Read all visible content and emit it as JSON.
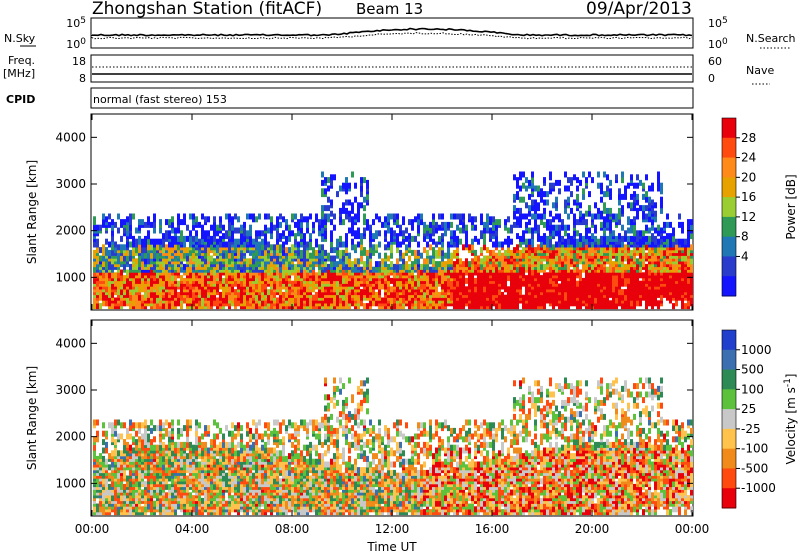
{
  "header": {
    "title": "Zhongshan Station (fitACF)",
    "beam": "Beam 13",
    "date": "09/Apr/2013"
  },
  "strip_labels": {
    "nsky": "N.Sky",
    "nsearch": "N.Search",
    "freq": "Freq.",
    "mhz": "[MHz]",
    "nave": "Nave",
    "cpid": "CPID",
    "cpid_text": "normal (fast stereo) 153",
    "nsky_ticks": [
      "10^5",
      "10^0"
    ],
    "nsearch_ticks": [
      "10^5",
      "10^0"
    ],
    "freq_ticks": [
      "18",
      "8"
    ],
    "nave_ticks": [
      "60",
      "0"
    ]
  },
  "chart_data": [
    {
      "type": "heatmap",
      "name": "power",
      "ylabel": "Slant Range [km]",
      "ylim": [
        300,
        4500
      ],
      "y_ticks": [
        1000,
        2000,
        3000,
        4000
      ],
      "xlim": [
        0,
        24
      ],
      "colorbar": {
        "label": "Power [dB]",
        "ticks": [
          "28",
          "24",
          "20",
          "16",
          "12",
          "8",
          "4"
        ],
        "colors": [
          "#e8000b",
          "#ff4a10",
          "#ff8a1a",
          "#e8a200",
          "#9acd32",
          "#2e9a55",
          "#1f78b4",
          "#2a3ccc",
          "#1414ff"
        ]
      }
    },
    {
      "type": "heatmap",
      "name": "velocity",
      "ylabel": "Slant Range [km]",
      "ylim": [
        300,
        4500
      ],
      "y_ticks": [
        1000,
        2000,
        3000,
        4000
      ],
      "xlim": [
        0,
        24
      ],
      "xlabel": "Time UT",
      "x_ticks": [
        "00:00",
        "04:00",
        "08:00",
        "12:00",
        "16:00",
        "20:00",
        "00:00"
      ],
      "colorbar": {
        "label": "Velocity [m s",
        "label_sup": "-1",
        "label_end": "]",
        "ticks": [
          "1000",
          "500",
          "100",
          "25",
          "-25",
          "-100",
          "-500",
          "-1000"
        ],
        "colors": [
          "#1f3fcc",
          "#3b6fb0",
          "#2e8a55",
          "#5cc23c",
          "#c8c8c8",
          "#ffc34d",
          "#f08a1a",
          "#ff4a10",
          "#e8000b"
        ]
      }
    }
  ]
}
